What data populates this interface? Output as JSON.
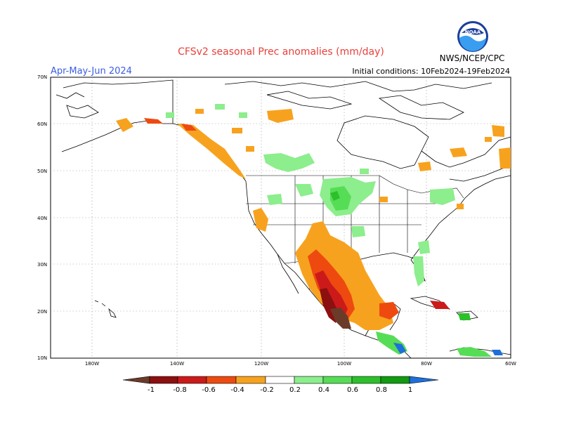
{
  "header": {
    "title": "CFSv2 seasonal Prec anomalies (mm/day)",
    "season": "Apr-May-Jun 2024",
    "initial_conditions": "Initial conditions: 10Feb2024-19Feb2024",
    "agency": "NWS/NCEP/CPC",
    "logo_text": "NOAA"
  },
  "axes": {
    "lat_labels": [
      "70N",
      "60N",
      "50N",
      "40N",
      "30N",
      "20N",
      "10N"
    ],
    "lon_labels": [
      "180W",
      "140W",
      "120W",
      "100W",
      "80W",
      "60W"
    ]
  },
  "legend": {
    "labels": [
      "-1",
      "-0.8",
      "-0.6",
      "-0.4",
      "-0.2",
      "0.2",
      "0.4",
      "0.6",
      "0.8",
      "1"
    ],
    "colors": {
      "lt_-1": "#6b3b2a",
      "-1_-0.8": "#8c1010",
      "-0.8_-0.6": "#cc1a1a",
      "-0.6_-0.4": "#ee4a10",
      "-0.4_-0.2": "#f7a21e",
      "-0.2_0.2": "#ffffff",
      "0.2_0.4": "#8cee8c",
      "0.4_0.6": "#56dd56",
      "0.6_0.8": "#2cc02c",
      "0.8_1": "#119b11",
      "gt_1": "#1f6fdb"
    }
  }
}
